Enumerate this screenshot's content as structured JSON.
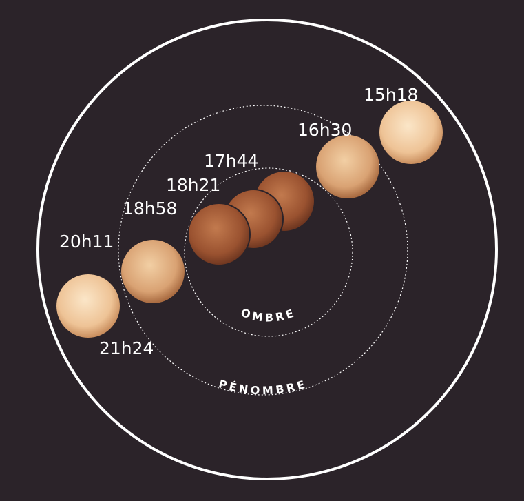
{
  "times": [
    "15h18",
    "16h30",
    "17h44",
    "18h21",
    "18h58",
    "20h11",
    "21h24"
  ],
  "zones": {
    "umbra": "OMBRE",
    "penumbra": "PÉNOMBRE"
  }
}
